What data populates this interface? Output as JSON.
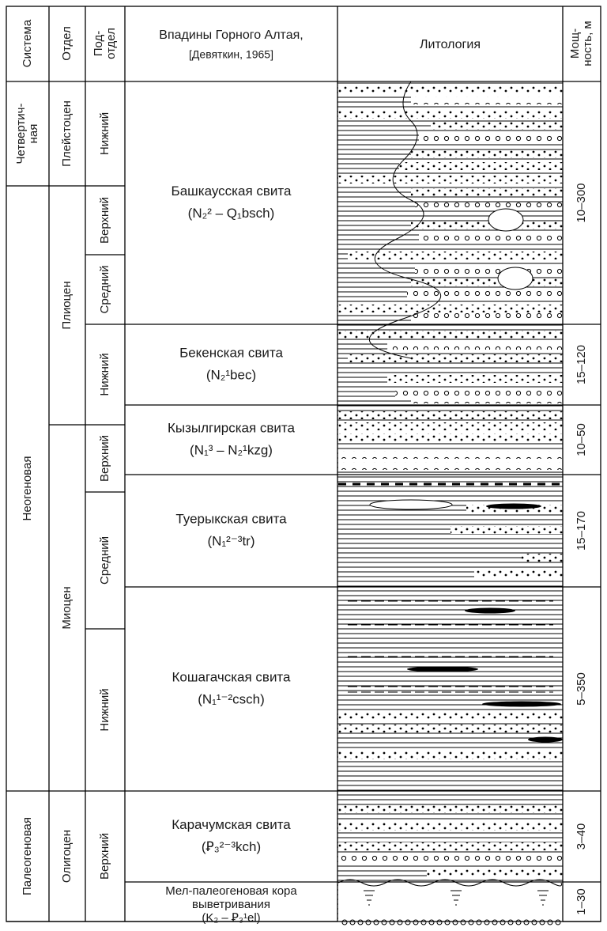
{
  "header": {
    "system": "Система",
    "series": "Отдел",
    "subseries": [
      "Под-",
      "отдел"
    ],
    "formations": [
      "Впадины Горного Алтая,",
      "[Девяткин, 1965]"
    ],
    "lithology": "Литология",
    "thickness": [
      "Мощ-",
      "ность, м"
    ]
  },
  "systems": [
    [
      "Четвертич-",
      "ная"
    ],
    [
      "Неогеновая"
    ],
    [
      "Палеогеновая"
    ]
  ],
  "series": [
    "Плейстоцен",
    "Плиоцен",
    "Миоцен",
    "Олигоцен"
  ],
  "subseries": [
    "Нижний",
    "Верхний",
    "Средний",
    "Нижний",
    "Верхний",
    "Средний",
    "Нижний",
    "Верхний"
  ],
  "formations": [
    {
      "name": [
        "Башкаусская свита"
      ],
      "index": "(N₂² – Q₁bsch)"
    },
    {
      "name": [
        "Бекенская свита"
      ],
      "index": "(N₂¹bec)"
    },
    {
      "name": [
        "Кызылгирская свита"
      ],
      "index": "(N₁³ – N₂¹kzg)"
    },
    {
      "name": [
        "Туерыкская свита"
      ],
      "index": "(N₁²⁻³tr)"
    },
    {
      "name": [
        "Кошагачская свита"
      ],
      "index": "(N₁¹⁻²csch)"
    },
    {
      "name": [
        "Карачумская свита"
      ],
      "index": "(Ꝑ₃²⁻³kch)"
    },
    {
      "name": [
        "Мел-палеогеновая кора",
        "выветривания"
      ],
      "index": "(K₂ – Ꝑ₃¹el)"
    }
  ],
  "thickness": [
    "10–300",
    "15–120",
    "10–50",
    "15–170",
    "5–350",
    "3–40",
    "1–30"
  ]
}
